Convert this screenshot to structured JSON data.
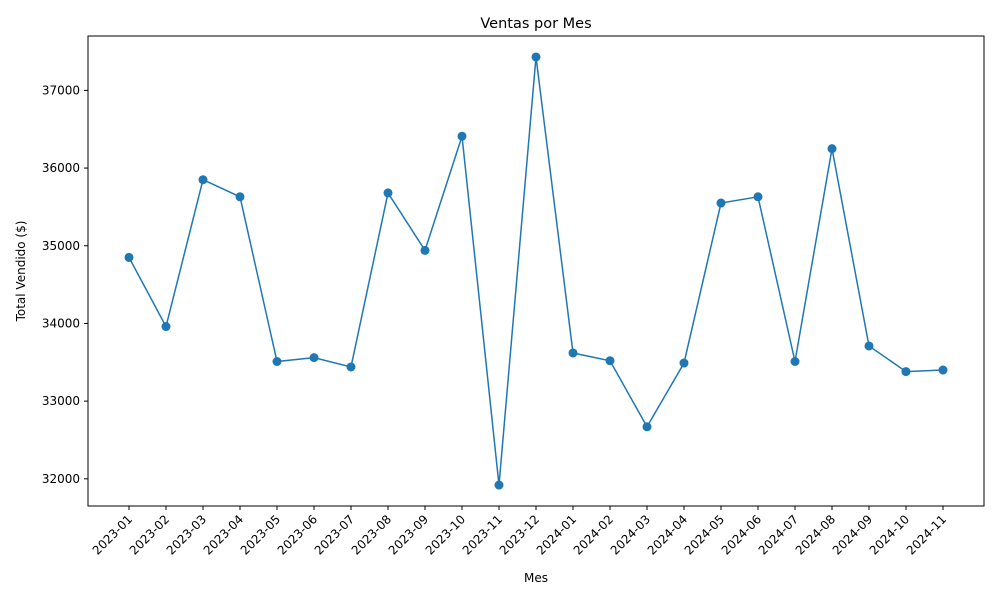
{
  "chart_data": {
    "type": "line",
    "title": "Ventas por Mes",
    "xlabel": "Mes",
    "ylabel": "Total Vendido ($)",
    "categories": [
      "2023-01",
      "2023-02",
      "2023-03",
      "2023-04",
      "2023-05",
      "2023-06",
      "2023-07",
      "2023-08",
      "2023-09",
      "2023-10",
      "2023-11",
      "2023-12",
      "2024-01",
      "2024-02",
      "2024-03",
      "2024-04",
      "2024-05",
      "2024-06",
      "2024-07",
      "2024-08",
      "2024-09",
      "2024-10",
      "2024-11"
    ],
    "series": [
      {
        "values": [
          34850,
          33960,
          35850,
          35630,
          33510,
          33560,
          33440,
          35680,
          34940,
          36410,
          31920,
          37430,
          33620,
          33520,
          32670,
          33490,
          35550,
          35630,
          33510,
          36250,
          33710,
          33380,
          33400
        ],
        "color": "#1f77b4",
        "marker": "circle"
      }
    ],
    "ylim": [
      31650,
      37700
    ],
    "yticks": [
      32000,
      33000,
      34000,
      35000,
      36000,
      37000
    ],
    "grid": false,
    "legend": "none"
  }
}
